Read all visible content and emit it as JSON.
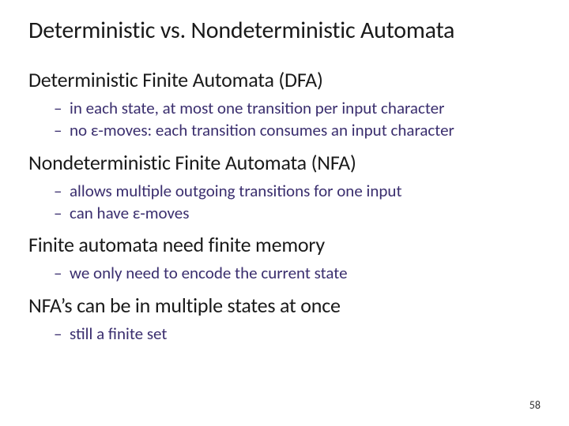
{
  "slide": {
    "title": "Deterministic vs. Nondeterministic Automata",
    "sections": [
      {
        "heading": "Deterministic Finite Automata (DFA)",
        "bullets": [
          "in each state, at most one transition per input character",
          "no ε-moves: each transition consumes an input character"
        ]
      },
      {
        "heading": "Nondeterministic Finite Automata (NFA)",
        "bullets": [
          "allows multiple outgoing transitions for one input",
          "can have ε-moves"
        ]
      },
      {
        "heading": "Finite automata need finite memory",
        "bullets": [
          "we only need to encode the current state"
        ]
      },
      {
        "heading": "NFA’s can be in multiple states at once",
        "bullets": [
          "still a finite set"
        ]
      }
    ],
    "page_number": "58"
  },
  "style": {
    "background_color": "#ffffff",
    "title_color": "#1a1a1a",
    "heading_color": "#1a1a1a",
    "bullet_color": "#3a2e6e",
    "title_fontsize": 30,
    "heading_fontsize": 26,
    "bullet_fontsize": 21,
    "page_number_fontsize": 14,
    "font_family": "Calibri"
  }
}
